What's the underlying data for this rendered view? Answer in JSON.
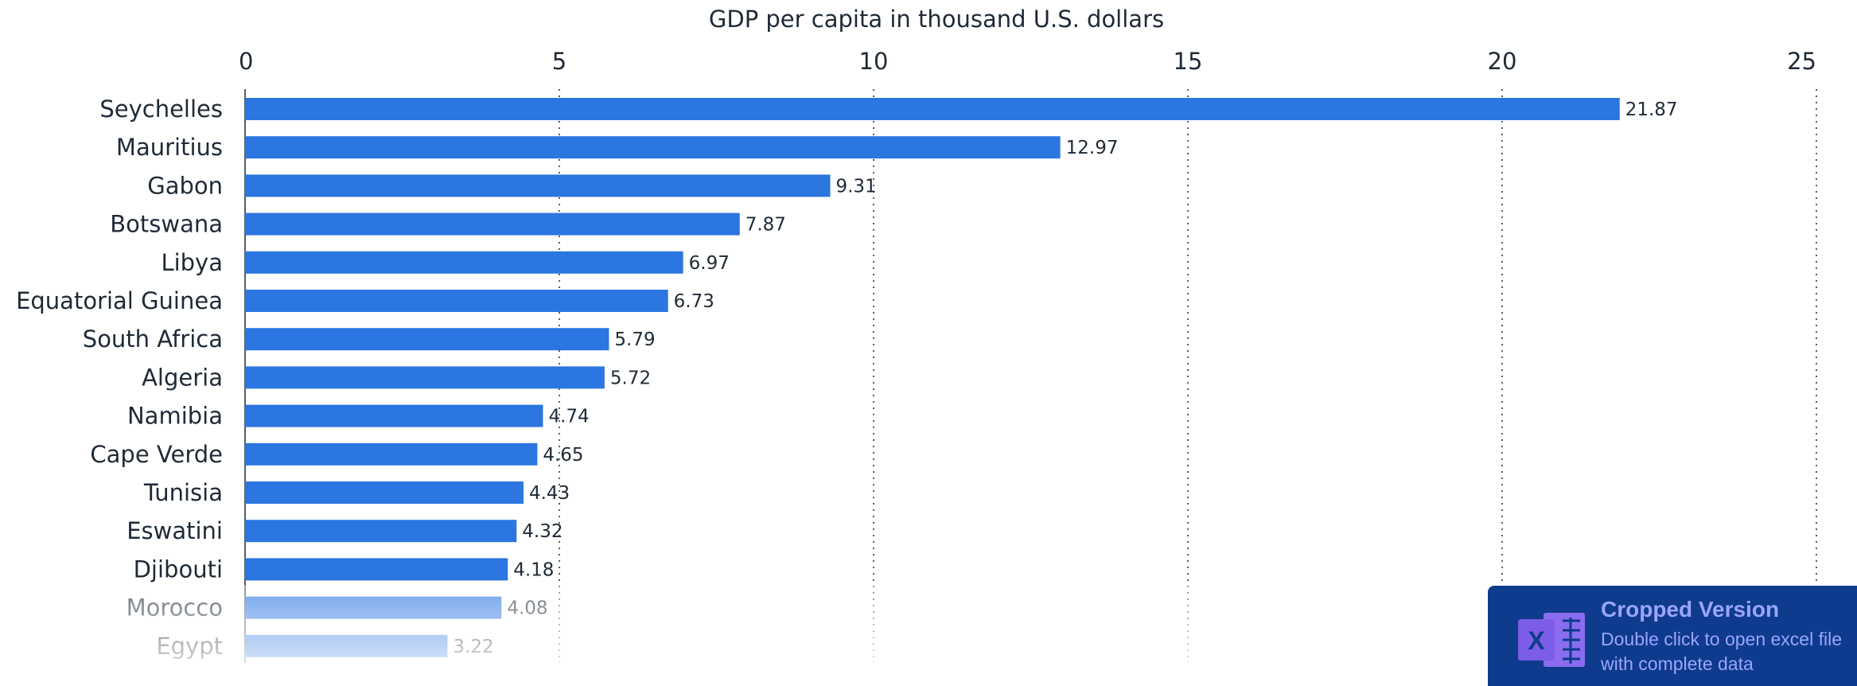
{
  "chart_data": {
    "type": "bar",
    "orientation": "horizontal",
    "title": "GDP per capita in thousand U.S. dollars",
    "x_ticks": [
      "0",
      "5",
      "10",
      "15",
      "20",
      "25"
    ],
    "xlim": [
      0,
      25
    ],
    "grid": "vertical dotted",
    "bar_color": "#2b76e0",
    "categories": [
      "Seychelles",
      "Mauritius",
      "Gabon",
      "Botswana",
      "Libya",
      "Equatorial Guinea",
      "South Africa",
      "Algeria",
      "Namibia",
      "Cape Verde",
      "Tunisia",
      "Eswatini",
      "Djibouti",
      "Morocco",
      "Egypt"
    ],
    "values": [
      21.87,
      12.97,
      9.31,
      7.87,
      6.97,
      6.73,
      5.79,
      5.72,
      4.74,
      4.65,
      4.43,
      4.32,
      4.18,
      4.08,
      3.22
    ],
    "value_labels": [
      "21.87",
      "12.97",
      "9.31",
      "7.87",
      "6.97",
      "6.73",
      "5.79",
      "5.72",
      "4.74",
      "4.65",
      "4.43",
      "4.32",
      "4.18",
      "4.08",
      "3.22"
    ]
  },
  "promo": {
    "title": "Cropped Version",
    "subtitle": "Double click to open excel file with complete data",
    "icon": "excel-icon",
    "background": "#0f3b8c",
    "text_color": "#9aa4ff"
  }
}
